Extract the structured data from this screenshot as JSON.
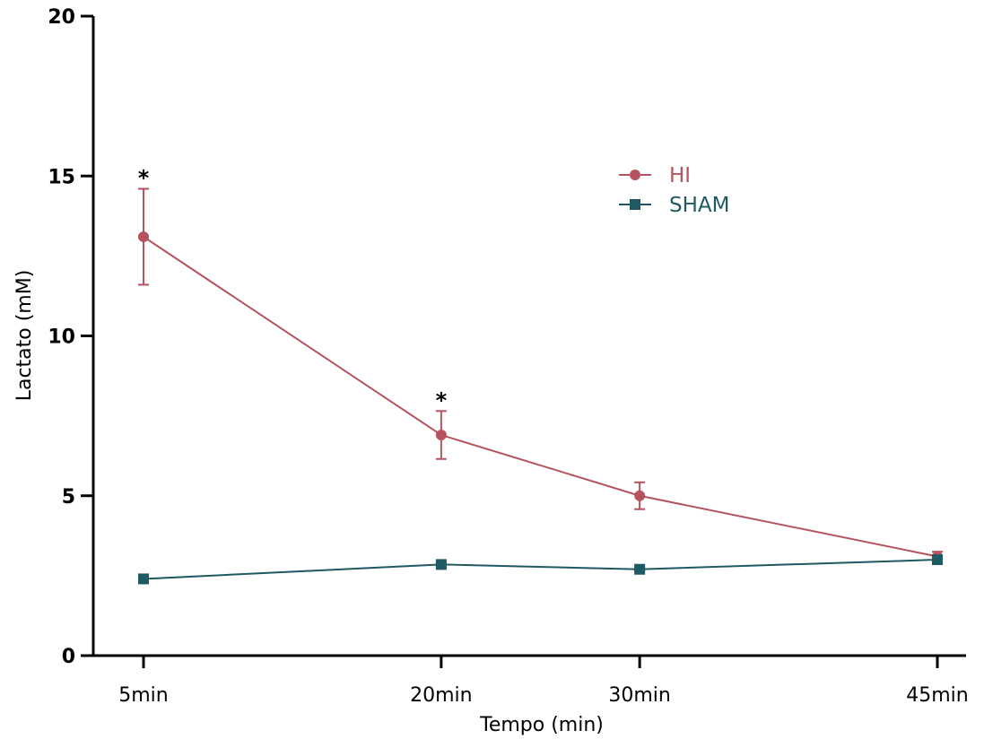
{
  "chart_data": {
    "type": "line",
    "title": "",
    "xlabel": "Tempo (min)",
    "ylabel": "Lactato (mM)",
    "categories": [
      "5min",
      "20min",
      "30min",
      "45min"
    ],
    "x": [
      5,
      20,
      30,
      45
    ],
    "ylim": [
      0,
      20
    ],
    "yticks": [
      0,
      5,
      10,
      15,
      20
    ],
    "grid": false,
    "legend_position": "top-right",
    "series": [
      {
        "name": "HI",
        "color": "#b5545f",
        "marker": "circle",
        "values": [
          13.1,
          6.9,
          5.0,
          3.1
        ],
        "error": [
          1.5,
          0.75,
          0.42,
          0.15
        ],
        "significance": [
          "*",
          "*",
          "",
          ""
        ]
      },
      {
        "name": "SHAM",
        "color": "#1f5a63",
        "marker": "square",
        "values": [
          2.4,
          2.85,
          2.7,
          3.0
        ],
        "error": [
          0.05,
          0.05,
          0.05,
          0.1
        ],
        "significance": [
          "",
          "",
          "",
          ""
        ]
      }
    ]
  }
}
